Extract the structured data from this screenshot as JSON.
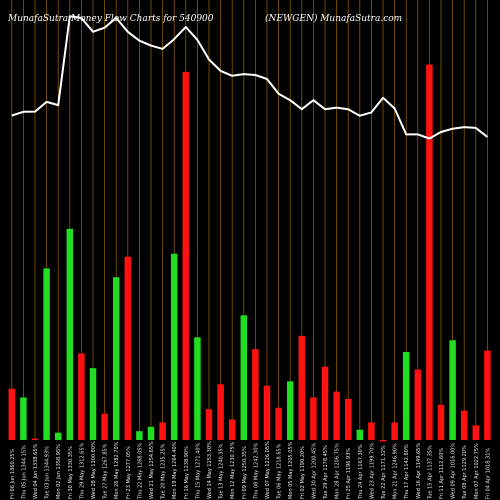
{
  "header": {
    "left": "MunafaSutra  Money Flow  Charts for 540900",
    "right": "(NEWGEN) MunafaSutra.com"
  },
  "chart_data": {
    "type": "bar",
    "colors": {
      "up": "#22dd22",
      "down": "#ff1111",
      "line": "#ffffff",
      "grid": "#8b5a00",
      "background": "#000000"
    },
    "categories": [
      "Fri 06 Jun 1360.25%",
      "Thu 05 Jun 1344.15%",
      "Wed 04 Jun 1338.65%",
      "Tue 03 Jun 1344.93%",
      "Mon 02 Jun 1358.95%",
      "Fri 30 May 1330.35%",
      "Thu 29 May 1312.65%",
      "Wed 28 May 1300.80%",
      "Tue 27 May 1267.85%",
      "Mon 26 May 1282.70%",
      "Fri 23 May 1277.05%",
      "Thu 22 May 1268.05%",
      "Wed 21 May 1254.65%",
      "Tue 20 May 1235.25%",
      "Mon 19 May 1264.40%",
      "Fri 16 May 1238.90%",
      "Thu 15 May 1271.40%",
      "Wed 14 May 1253.30%",
      "Tue 13 May 1240.35%",
      "Mon 12 May 1230.75%",
      "Fri 09 May 1250.35%",
      "Thu 08 May 1242.30%",
      "Wed 07 May 1226.05%",
      "Tue 06 May 1218.65%",
      "Mon 05 May 1205.05%",
      "Fri 02 May 1190.20%",
      "Wed 30 Apr 1200.45%",
      "Tue 29 Apr 1178.45%",
      "Mon 28 Apr 1206.75%",
      "Fri 25 Apr 1196.93%",
      "Thu 24 Apr 1167.30%",
      "Wed 23 Apr 1199.70%",
      "Tue 22 Apr 1171.32%",
      "Mon 21 Apr 1246.90%",
      "Thu 17 Apr 1142.80%",
      "Wed 16 Apr 1149.65%",
      "Tue 15 Apr 1137.35%",
      "Fri 11 Apr 1112.60%",
      "Wed 09 Apr 1016.00%",
      "Tue 08 Apr 1129.20%",
      "Mon 07 Apr 1022.75%",
      "Fri 04 Apr 1018.31%"
    ],
    "series": [
      {
        "role": "bars",
        "values": [
          "0.35",
          "0.29",
          "0.01",
          "1.17",
          "0.05",
          "1.44",
          "0.59",
          "0.49",
          "0.18",
          "1.11",
          "1.25",
          "0.06",
          "0.09",
          "0.12",
          "1.27",
          "2.51",
          "0.70",
          "0.21",
          "0.38",
          "0.14",
          "0.85",
          "0.62",
          "0.37",
          "0.22",
          "0.40",
          "0.71",
          "0.29",
          "0.50",
          "0.33",
          "0.28",
          "0.07",
          "0.12",
          "0.00",
          "0.12",
          "0.60",
          "0.48",
          "2.56",
          "0.24",
          "0.68",
          "0.20",
          "0.10",
          "0.61"
        ],
        "direction": [
          "down",
          "up",
          "down",
          "up",
          "up",
          "up",
          "down",
          "up",
          "down",
          "up",
          "down",
          "up",
          "up",
          "down",
          "up",
          "down",
          "up",
          "down",
          "down",
          "down",
          "up",
          "down",
          "down",
          "down",
          "up",
          "down",
          "down",
          "down",
          "down",
          "down",
          "up",
          "down",
          "down",
          "down",
          "up",
          "down",
          "down",
          "down",
          "up",
          "down",
          "down",
          "down"
        ]
      },
      {
        "role": "line",
        "values": [
          1018.31,
          1022.75,
          1023.0,
          1035.0,
          1031.0,
          1140.0,
          1138.0,
          1121.0,
          1126.0,
          1138.0,
          1121.0,
          1110.0,
          1104.0,
          1100.0,
          1112.0,
          1127.0,
          1111.0,
          1087.0,
          1073.0,
          1067.0,
          1069.0,
          1068.0,
          1063.0,
          1045.0,
          1037.0,
          1026.0,
          1037.0,
          1026.0,
          1028.0,
          1026.0,
          1018.0,
          1022.0,
          1040.0,
          1027.0,
          995.0,
          995.0,
          990.0,
          998.0,
          1002.0,
          1004.0,
          1003.0,
          992.0
        ]
      }
    ],
    "ylim": [
      0,
      3
    ]
  }
}
